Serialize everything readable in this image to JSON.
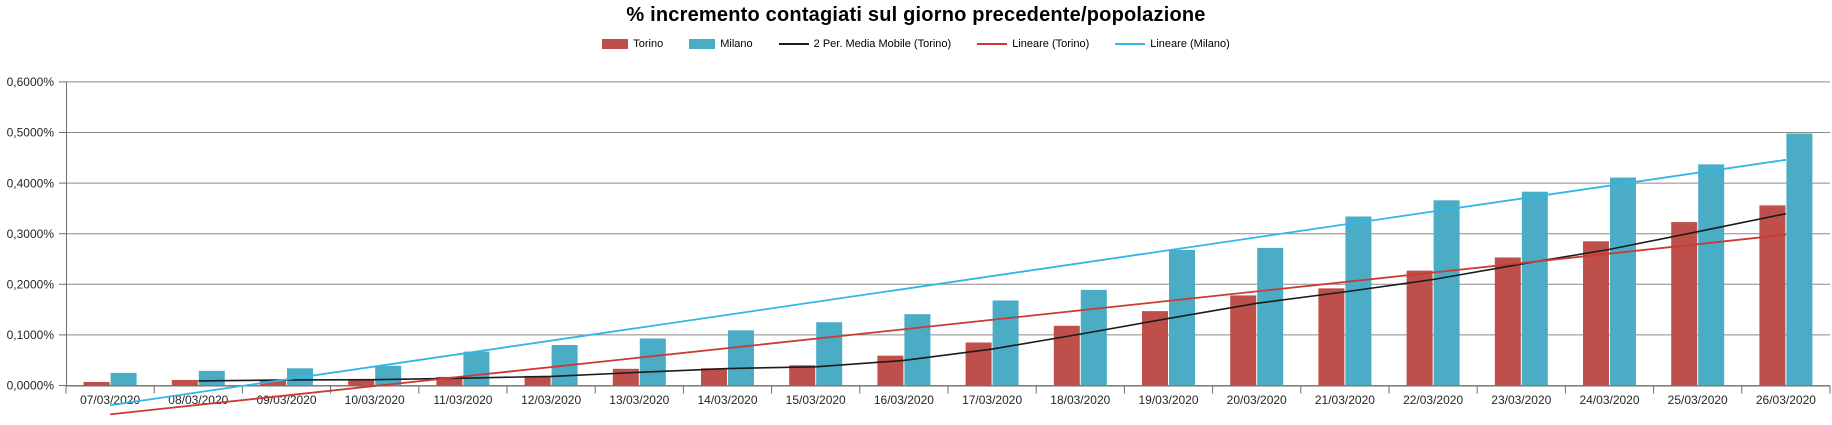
{
  "chart_data": {
    "type": "bar",
    "title": "% incremento contagiati sul giorno precedente/popolazione",
    "categories": [
      "07/03/2020",
      "08/03/2020",
      "09/03/2020",
      "10/03/2020",
      "11/03/2020",
      "12/03/2020",
      "13/03/2020",
      "14/03/2020",
      "15/03/2020",
      "16/03/2020",
      "17/03/2020",
      "18/03/2020",
      "19/03/2020",
      "20/03/2020",
      "21/03/2020",
      "22/03/2020",
      "23/03/2020",
      "24/03/2020",
      "25/03/2020",
      "26/03/2020"
    ],
    "series": [
      {
        "name": "Torino",
        "type": "bar",
        "color": "#BF4F4B",
        "values": [
          0.007,
          0.011,
          0.011,
          0.012,
          0.017,
          0.019,
          0.033,
          0.034,
          0.04,
          0.059,
          0.085,
          0.118,
          0.147,
          0.178,
          0.192,
          0.227,
          0.253,
          0.285,
          0.323,
          0.356
        ]
      },
      {
        "name": "Milano",
        "type": "bar",
        "color": "#4BACC6",
        "values": [
          0.025,
          0.029,
          0.034,
          0.039,
          0.067,
          0.08,
          0.093,
          0.109,
          0.125,
          0.141,
          0.168,
          0.189,
          0.268,
          0.272,
          0.334,
          0.366,
          0.383,
          0.411,
          0.437,
          0.498
        ]
      },
      {
        "name": "2 Per. Media Mobile (Torino)",
        "type": "line",
        "color": "#1C1C1C",
        "values": [
          null,
          0.009,
          0.011,
          0.0115,
          0.0145,
          0.018,
          0.026,
          0.0335,
          0.037,
          0.0495,
          0.072,
          0.1015,
          0.1325,
          0.1625,
          0.185,
          0.2095,
          0.24,
          0.269,
          0.304,
          0.3395
        ]
      },
      {
        "name": "Lineare (Torino)",
        "type": "trendline",
        "color": "#CC3B33",
        "endpoint_values": [
          -0.057,
          0.298
        ]
      },
      {
        "name": "Lineare (Milano)",
        "type": "trendline",
        "color": "#31B6E7",
        "endpoint_values": [
          -0.039,
          0.446
        ]
      }
    ],
    "y_axis": {
      "min": 0,
      "max": 0.6,
      "step": 0.1,
      "unit": "percent",
      "tick_labels": [
        "0,0000%",
        "0,1000%",
        "0,2000%",
        "0,3000%",
        "0,4000%",
        "0,5000%",
        "0,6000%"
      ]
    },
    "legend_position": "top",
    "gridlines": true,
    "style": {
      "background": "#FFFFFF",
      "gridline_color": "#8A8A8A",
      "axis_color": "#6E6E6E",
      "tick_label_color": "#262626",
      "title_color": "#000000"
    }
  }
}
